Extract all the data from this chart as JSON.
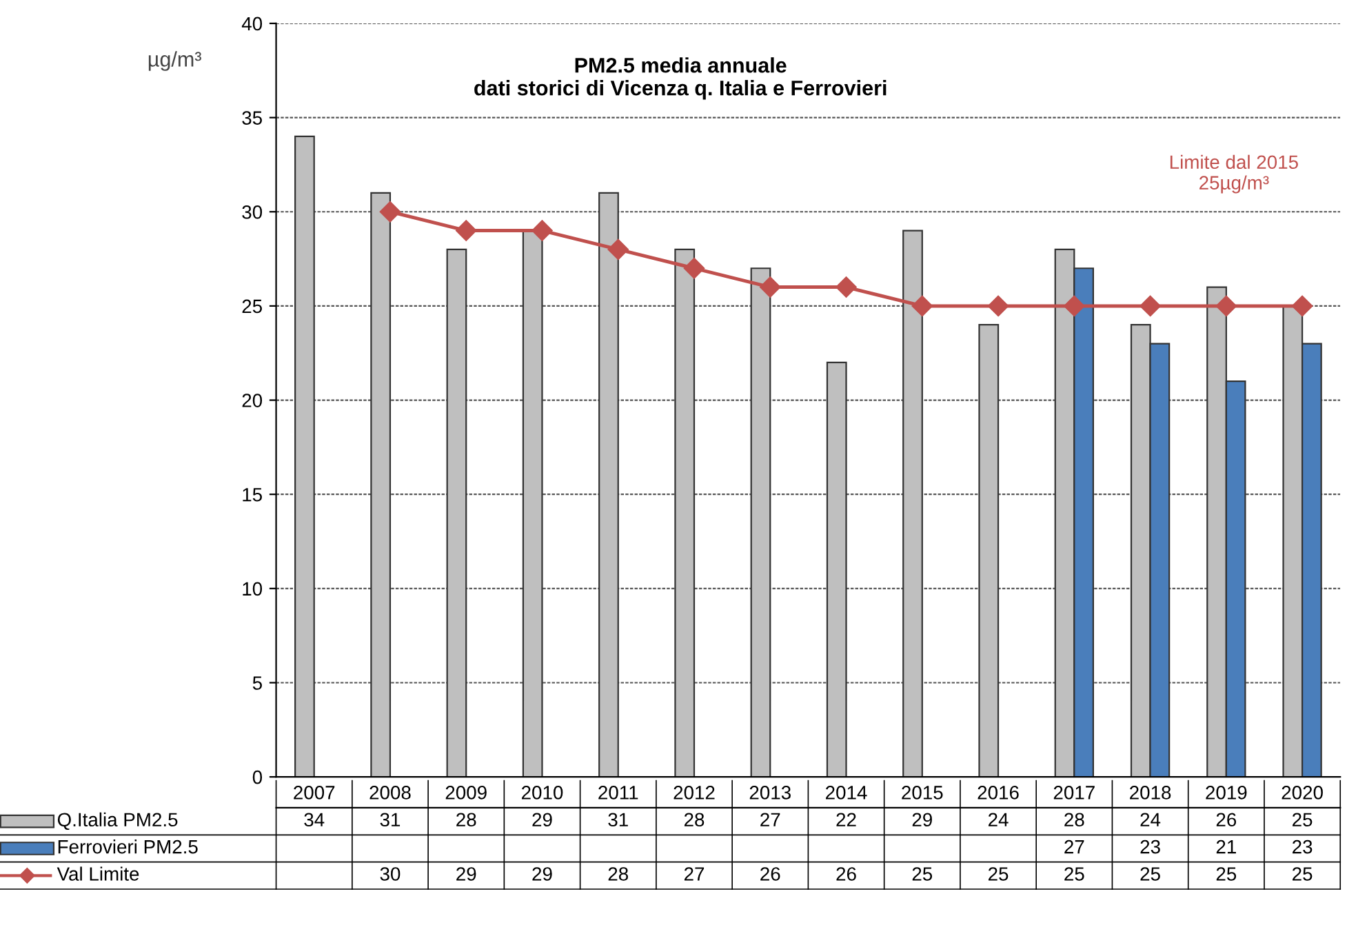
{
  "chart_data": {
    "type": "bar",
    "title": "PM2.5 media annuale\ndati storici di Vicenza q. Italia e Ferrovieri",
    "ylabel": "µg/m³",
    "categories": [
      "2007",
      "2008",
      "2009",
      "2010",
      "2011",
      "2012",
      "2013",
      "2014",
      "2015",
      "2016",
      "2017",
      "2018",
      "2019",
      "2020"
    ],
    "series": [
      {
        "name": "Q.Italia PM2.5",
        "color": "#bfbfbf",
        "values": [
          34,
          31,
          28,
          29,
          31,
          28,
          27,
          22,
          29,
          24,
          28,
          24,
          26,
          25
        ]
      },
      {
        "name": "Ferrovieri PM2.5",
        "color": "#4a7ebb",
        "values": [
          null,
          null,
          null,
          null,
          null,
          null,
          null,
          null,
          null,
          null,
          27,
          23,
          21,
          23
        ]
      },
      {
        "name": "Val Limite",
        "type": "line",
        "color": "#c0504d",
        "marker": "diamond",
        "values": [
          null,
          30,
          29,
          29,
          28,
          27,
          26,
          26,
          25,
          25,
          25,
          25,
          25,
          25
        ]
      }
    ],
    "ylim": [
      0,
      40
    ],
    "yticks": [
      0,
      5,
      10,
      15,
      20,
      25,
      30,
      35,
      40
    ],
    "grid": "y",
    "data_labels": true,
    "legend": "bottom left",
    "annotations": [
      "Limite dal 2015\n25µg/m³"
    ]
  }
}
